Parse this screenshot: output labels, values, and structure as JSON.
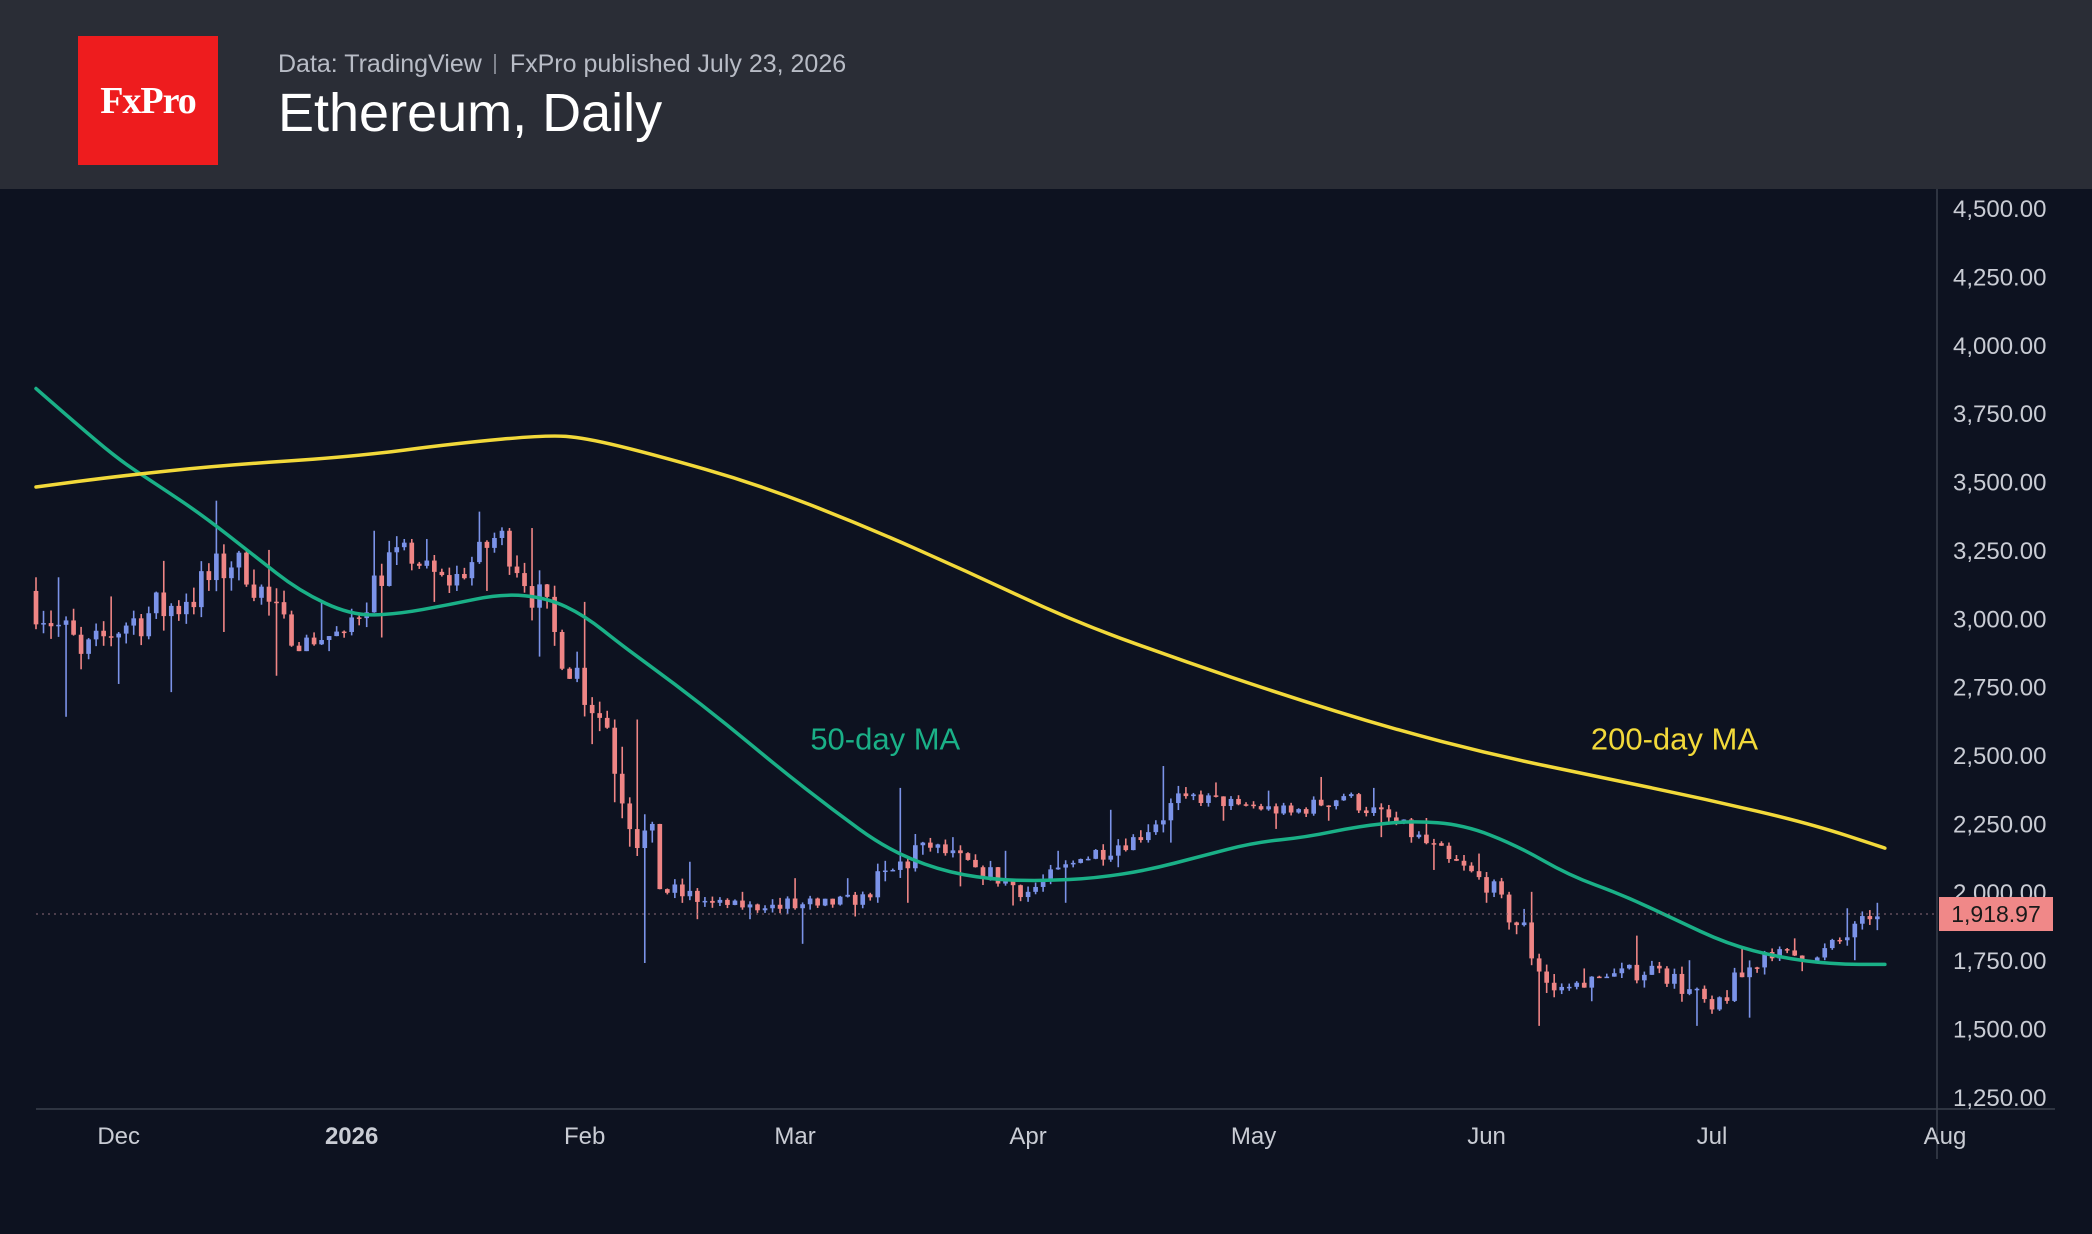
{
  "header": {
    "logo_text": "FxPro",
    "source": "Data: TradingView",
    "published": "FxPro published July 23, 2026",
    "title": "Ethereum, Daily"
  },
  "chart_data": {
    "type": "candlestick",
    "title": "Ethereum, Daily",
    "ylim": [
      1250,
      4500
    ],
    "y_ticks": [
      4500,
      4250,
      4000,
      3750,
      3500,
      3250,
      3000,
      2750,
      2500,
      2250,
      2000,
      1750,
      1500,
      1250
    ],
    "y_tick_labels": [
      "4,500.00",
      "4,250.00",
      "4,000.00",
      "3,750.00",
      "3,500.00",
      "3,250.00",
      "3,000.00",
      "2,750.00",
      "2,500.00",
      "2,250.00",
      "2,000.00",
      "1,750.00",
      "1,500.00",
      "1,250.00"
    ],
    "x_tick_labels": [
      "Dec",
      "2026",
      "Feb",
      "Mar",
      "Apr",
      "May",
      "Jun",
      "Jul",
      "Aug"
    ],
    "x_tick_dates": [
      "2025-12-01",
      "2026-01-01",
      "2026-02-01",
      "2026-03-01",
      "2026-04-01",
      "2026-05-01",
      "2026-06-01",
      "2026-07-01",
      "2026-08-01"
    ],
    "x_range": [
      "2025-11-20",
      "2026-08-01"
    ],
    "last_price": 1918.97,
    "last_price_label": "1,918.97",
    "colors": {
      "up": "#7b93e8",
      "down": "#ef8585",
      "ma50": "#1ab087",
      "ma200": "#f2d93a",
      "last_price": "#f08888",
      "background": "#0d1220",
      "header": "#2a2d36"
    },
    "series": [
      {
        "name": "50-day MA",
        "color": "#1ab087",
        "points": [
          [
            "2025-11-20",
            3840
          ],
          [
            "2025-11-25",
            3720
          ],
          [
            "2025-12-01",
            3580
          ],
          [
            "2025-12-06",
            3490
          ],
          [
            "2025-12-12",
            3380
          ],
          [
            "2025-12-19",
            3230
          ],
          [
            "2025-12-25",
            3100
          ],
          [
            "2026-01-01",
            3010
          ],
          [
            "2026-01-07",
            3015
          ],
          [
            "2026-01-14",
            3050
          ],
          [
            "2026-01-21",
            3090
          ],
          [
            "2026-01-27",
            3075
          ],
          [
            "2026-02-01",
            3010
          ],
          [
            "2026-02-06",
            2900
          ],
          [
            "2026-02-13",
            2760
          ],
          [
            "2026-02-20",
            2610
          ],
          [
            "2026-02-27",
            2450
          ],
          [
            "2026-03-06",
            2300
          ],
          [
            "2026-03-13",
            2160
          ],
          [
            "2026-03-20",
            2080
          ],
          [
            "2026-03-27",
            2045
          ],
          [
            "2026-04-03",
            2040
          ],
          [
            "2026-04-10",
            2050
          ],
          [
            "2026-04-17",
            2080
          ],
          [
            "2026-04-24",
            2130
          ],
          [
            "2026-05-01",
            2180
          ],
          [
            "2026-05-08",
            2200
          ],
          [
            "2026-05-15",
            2240
          ],
          [
            "2026-05-22",
            2260
          ],
          [
            "2026-05-29",
            2245
          ],
          [
            "2026-06-05",
            2170
          ],
          [
            "2026-06-12",
            2060
          ],
          [
            "2026-06-19",
            1990
          ],
          [
            "2026-06-26",
            1900
          ],
          [
            "2026-07-03",
            1810
          ],
          [
            "2026-07-10",
            1760
          ],
          [
            "2026-07-17",
            1735
          ],
          [
            "2026-07-24",
            1735
          ]
        ]
      },
      {
        "name": "200-day MA",
        "color": "#f2d93a",
        "points": [
          [
            "2025-11-20",
            3480
          ],
          [
            "2025-12-01",
            3520
          ],
          [
            "2025-12-15",
            3560
          ],
          [
            "2026-01-01",
            3590
          ],
          [
            "2026-01-15",
            3640
          ],
          [
            "2026-01-27",
            3670
          ],
          [
            "2026-02-01",
            3660
          ],
          [
            "2026-02-10",
            3600
          ],
          [
            "2026-02-24",
            3490
          ],
          [
            "2026-03-10",
            3340
          ],
          [
            "2026-03-24",
            3170
          ],
          [
            "2026-04-07",
            2990
          ],
          [
            "2026-04-21",
            2850
          ],
          [
            "2026-05-05",
            2720
          ],
          [
            "2026-05-19",
            2600
          ],
          [
            "2026-06-02",
            2500
          ],
          [
            "2026-06-16",
            2420
          ],
          [
            "2026-06-30",
            2340
          ],
          [
            "2026-07-14",
            2250
          ],
          [
            "2026-07-24",
            2160
          ]
        ]
      }
    ],
    "candles_weekly_approx": [
      {
        "start": "2025-11-20",
        "open": 3100,
        "high": 3150,
        "low": 2640,
        "close": 2870
      },
      {
        "start": "2025-11-27",
        "open": 2870,
        "high": 3080,
        "low": 2760,
        "close": 3000
      },
      {
        "start": "2025-12-04",
        "open": 3000,
        "high": 3210,
        "low": 2730,
        "close": 3060
      },
      {
        "start": "2025-12-11",
        "open": 3060,
        "high": 3430,
        "low": 2950,
        "close": 3240
      },
      {
        "start": "2025-12-18",
        "open": 3240,
        "high": 3250,
        "low": 2790,
        "close": 2900
      },
      {
        "start": "2025-12-25",
        "open": 2900,
        "high": 3060,
        "low": 2880,
        "close": 2950
      },
      {
        "start": "2026-01-01",
        "open": 2950,
        "high": 3320,
        "low": 2930,
        "close": 3260
      },
      {
        "start": "2026-01-08",
        "open": 3260,
        "high": 3290,
        "low": 3060,
        "close": 3120
      },
      {
        "start": "2026-01-15",
        "open": 3120,
        "high": 3390,
        "low": 3100,
        "close": 3320
      },
      {
        "start": "2026-01-22",
        "open": 3320,
        "high": 3330,
        "low": 2860,
        "close": 2950
      },
      {
        "start": "2026-01-29",
        "open": 2950,
        "high": 3060,
        "low": 2540,
        "close": 2600
      },
      {
        "start": "2026-02-05",
        "open": 2600,
        "high": 2630,
        "low": 1740,
        "close": 2010
      },
      {
        "start": "2026-02-12",
        "open": 2010,
        "high": 2110,
        "low": 1900,
        "close": 1960
      },
      {
        "start": "2026-02-19",
        "open": 1960,
        "high": 2000,
        "low": 1900,
        "close": 1940
      },
      {
        "start": "2026-02-26",
        "open": 1940,
        "high": 2050,
        "low": 1810,
        "close": 1950
      },
      {
        "start": "2026-03-05",
        "open": 1950,
        "high": 2050,
        "low": 1910,
        "close": 1980
      },
      {
        "start": "2026-03-12",
        "open": 1980,
        "high": 2380,
        "low": 1960,
        "close": 2180
      },
      {
        "start": "2026-03-19",
        "open": 2180,
        "high": 2200,
        "low": 2020,
        "close": 2090
      },
      {
        "start": "2026-03-26",
        "open": 2090,
        "high": 2150,
        "low": 1950,
        "close": 2000
      },
      {
        "start": "2026-04-02",
        "open": 2000,
        "high": 2150,
        "low": 1960,
        "close": 2120
      },
      {
        "start": "2026-04-09",
        "open": 2120,
        "high": 2300,
        "low": 2090,
        "close": 2200
      },
      {
        "start": "2026-04-16",
        "open": 2200,
        "high": 2460,
        "low": 2180,
        "close": 2350
      },
      {
        "start": "2026-04-23",
        "open": 2350,
        "high": 2400,
        "low": 2260,
        "close": 2320
      },
      {
        "start": "2026-04-30",
        "open": 2320,
        "high": 2370,
        "low": 2230,
        "close": 2290
      },
      {
        "start": "2026-05-07",
        "open": 2290,
        "high": 2420,
        "low": 2260,
        "close": 2350
      },
      {
        "start": "2026-05-14",
        "open": 2350,
        "high": 2380,
        "low": 2200,
        "close": 2250
      },
      {
        "start": "2026-05-21",
        "open": 2250,
        "high": 2270,
        "low": 2080,
        "close": 2120
      },
      {
        "start": "2026-05-28",
        "open": 2120,
        "high": 2140,
        "low": 1960,
        "close": 1990
      },
      {
        "start": "2026-06-04",
        "open": 1990,
        "high": 2000,
        "low": 1510,
        "close": 1640
      },
      {
        "start": "2026-06-11",
        "open": 1640,
        "high": 1720,
        "low": 1600,
        "close": 1690
      },
      {
        "start": "2026-06-18",
        "open": 1690,
        "high": 1840,
        "low": 1650,
        "close": 1720
      },
      {
        "start": "2026-06-25",
        "open": 1720,
        "high": 1750,
        "low": 1510,
        "close": 1570
      },
      {
        "start": "2026-07-02",
        "open": 1570,
        "high": 1800,
        "low": 1540,
        "close": 1780
      },
      {
        "start": "2026-07-09",
        "open": 1780,
        "high": 1830,
        "low": 1710,
        "close": 1760
      },
      {
        "start": "2026-07-16",
        "open": 1760,
        "high": 1940,
        "low": 1750,
        "close": 1900
      },
      {
        "start": "2026-07-23",
        "open": 1900,
        "high": 1960,
        "low": 1860,
        "close": 1919
      }
    ],
    "annotations": [
      {
        "text": "50-day MA",
        "color": "#1ab087",
        "date": "2026-03-13",
        "value": 2520
      },
      {
        "text": "200-day MA",
        "color": "#f2d93a",
        "date": "2026-06-26",
        "value": 2520
      }
    ],
    "grid": false
  }
}
